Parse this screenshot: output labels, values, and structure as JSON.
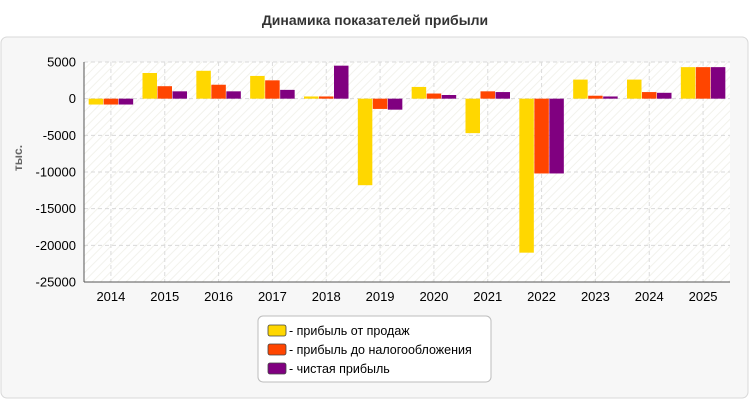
{
  "chart_data": {
    "type": "bar",
    "title": "Динамика показателей прибыли",
    "ylabel": "тыс.",
    "xlabel": "",
    "categories": [
      "2014",
      "2015",
      "2016",
      "2017",
      "2018",
      "2019",
      "2020",
      "2021",
      "2022",
      "2023",
      "2024",
      "2025"
    ],
    "ylim": [
      -25000,
      5000
    ],
    "yticks": [
      5000,
      0,
      -5000,
      -10000,
      -15000,
      -20000,
      -25000
    ],
    "grid": true,
    "legend_position": "bottom-center",
    "series": [
      {
        "name": "прибыль от продаж",
        "color": "#FFD700",
        "values": [
          -800,
          3500,
          3800,
          3100,
          300,
          -11800,
          1600,
          -4700,
          -21000,
          2600,
          2600,
          4300
        ]
      },
      {
        "name": "прибыль до налогообложения",
        "color": "#FF4500",
        "values": [
          -800,
          1700,
          1900,
          2500,
          300,
          -1400,
          700,
          1000,
          -10200,
          400,
          900,
          4300
        ]
      },
      {
        "name": "чистая прибыль",
        "color": "#800080",
        "values": [
          -800,
          1000,
          1000,
          1200,
          4500,
          -1500,
          500,
          900,
          -10200,
          300,
          800,
          4300
        ]
      }
    ]
  }
}
